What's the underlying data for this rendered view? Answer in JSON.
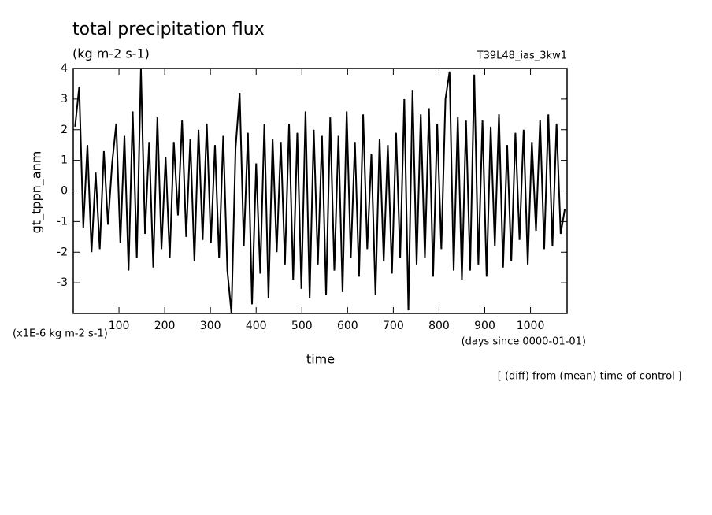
{
  "chart_data": {
    "type": "line",
    "title": "total precipitation flux",
    "subtitle": "(kg m-2 s-1)",
    "run_label": "T39L48_ias_3kw1",
    "y_label": "gt_tppn_anm",
    "y_unit": "(x1E-6 kg m-2 s-1)",
    "x_label": "time",
    "x_unit": "(days since 0000-01-01)",
    "note": "[ (diff) from (mean) time of control ]",
    "color": "#000000",
    "xlim": [
      0,
      1080
    ],
    "ylim": [
      -4,
      4
    ],
    "xticks": [
      100,
      200,
      300,
      400,
      500,
      600,
      700,
      800,
      900,
      1000
    ],
    "yticks": [
      -3,
      -2,
      -1,
      0,
      1,
      2,
      3,
      4
    ],
    "x": [
      4,
      13,
      22,
      31,
      40,
      49,
      58,
      67,
      76,
      85,
      94,
      103,
      112,
      121,
      130,
      139,
      148,
      157,
      166,
      175,
      184,
      193,
      202,
      211,
      220,
      229,
      238,
      247,
      256,
      265,
      274,
      283,
      292,
      301,
      310,
      319,
      328,
      337,
      346,
      355,
      364,
      373,
      382,
      391,
      400,
      409,
      418,
      427,
      436,
      445,
      454,
      463,
      472,
      481,
      490,
      499,
      508,
      517,
      526,
      535,
      544,
      553,
      562,
      571,
      580,
      589,
      598,
      607,
      616,
      625,
      634,
      643,
      652,
      661,
      670,
      679,
      688,
      697,
      706,
      715,
      724,
      733,
      742,
      751,
      760,
      769,
      778,
      787,
      796,
      805,
      814,
      823,
      832,
      841,
      850,
      859,
      868,
      877,
      886,
      895,
      904,
      913,
      922,
      931,
      940,
      949,
      958,
      967,
      976,
      985,
      994,
      1003,
      1012,
      1021,
      1030,
      1039,
      1048,
      1057,
      1066,
      1075
    ],
    "values": [
      2.1,
      3.4,
      -1.2,
      1.5,
      -2.0,
      0.6,
      -1.9,
      1.3,
      -1.1,
      0.9,
      2.2,
      -1.7,
      1.8,
      -2.6,
      2.6,
      -2.2,
      4.0,
      -1.4,
      1.6,
      -2.5,
      2.4,
      -1.9,
      1.1,
      -2.2,
      1.6,
      -0.8,
      2.3,
      -1.5,
      1.7,
      -2.3,
      2.0,
      -1.6,
      2.2,
      -1.7,
      1.5,
      -2.2,
      1.8,
      -2.6,
      -4.0,
      1.4,
      3.2,
      -1.8,
      1.9,
      -3.7,
      0.9,
      -2.7,
      2.2,
      -3.5,
      1.7,
      -2.0,
      1.6,
      -2.4,
      2.2,
      -2.9,
      1.9,
      -3.2,
      2.6,
      -3.5,
      2.0,
      -2.4,
      1.8,
      -3.4,
      2.4,
      -2.6,
      1.8,
      -3.3,
      2.6,
      -2.2,
      1.6,
      -2.8,
      2.5,
      -1.9,
      1.2,
      -3.4,
      1.7,
      -2.3,
      1.5,
      -2.7,
      1.9,
      -2.2,
      3.0,
      -3.9,
      3.3,
      -2.4,
      2.5,
      -2.2,
      2.7,
      -2.8,
      2.2,
      -1.9,
      3.0,
      3.9,
      -2.6,
      2.4,
      -2.9,
      2.3,
      -2.6,
      3.8,
      -2.4,
      2.3,
      -2.8,
      2.1,
      -1.8,
      2.5,
      -2.5,
      1.5,
      -2.3,
      1.9,
      -1.6,
      2.0,
      -2.4,
      1.6,
      -1.3,
      2.3,
      -1.9,
      2.5,
      -1.8,
      2.2,
      -1.4,
      -0.6
    ]
  }
}
